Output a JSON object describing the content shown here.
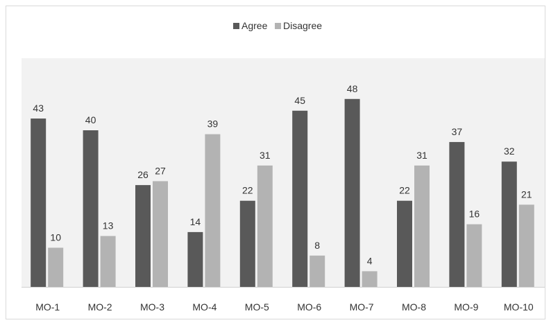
{
  "chart_data": {
    "type": "bar",
    "categories": [
      "MO-1",
      "MO-2",
      "MO-3",
      "MO-4",
      "MO-5",
      "MO-6",
      "MO-7",
      "MO-8",
      "MO-9",
      "MO-10"
    ],
    "series": [
      {
        "name": "Agree",
        "values": [
          43,
          40,
          26,
          14,
          22,
          45,
          48,
          22,
          37,
          32
        ],
        "color": "#595959"
      },
      {
        "name": "Disagree",
        "values": [
          10,
          13,
          27,
          39,
          31,
          8,
          4,
          31,
          16,
          21
        ],
        "color": "#b3b3b3"
      }
    ],
    "ylim": [
      0,
      50
    ],
    "grid": false,
    "legend": "top-center",
    "plot_background": "#f2f2f2",
    "data_labels": true
  }
}
